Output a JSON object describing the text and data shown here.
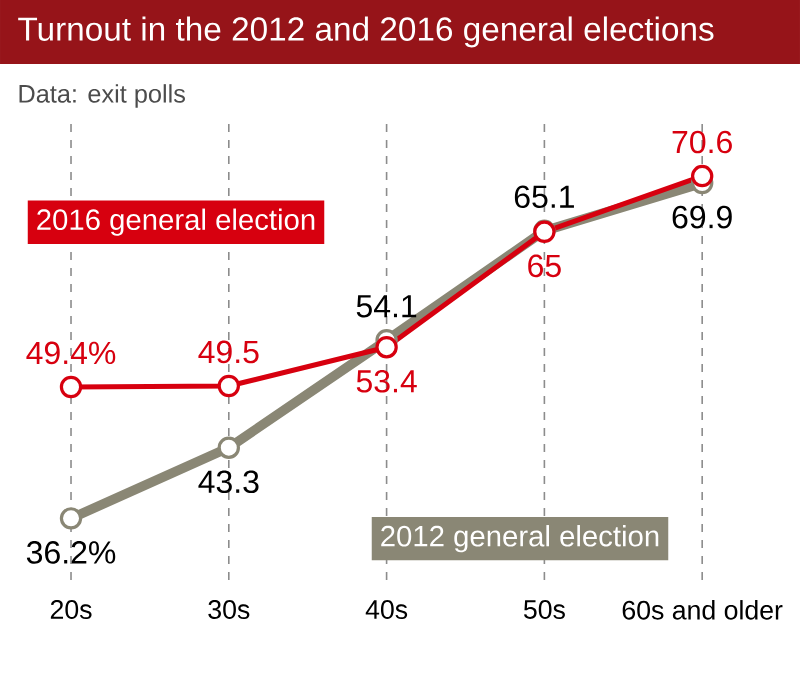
{
  "chart_data": {
    "type": "line",
    "title": "Turnout in the 2012 and 2016 general elections",
    "subtitle": "Data: exit polls",
    "categories": [
      "20s",
      "30s",
      "40s",
      "50s",
      "60s and older"
    ],
    "series": [
      {
        "name": "2012 general election",
        "color": "#8a8775",
        "values": [
          36.2,
          43.3,
          54.1,
          65.1,
          69.9
        ],
        "value_labels": [
          "36.2%",
          "43.3",
          "54.1",
          "65.1",
          "69.9"
        ]
      },
      {
        "name": "2016 general election",
        "color": "#d7000f",
        "values": [
          49.4,
          49.5,
          53.4,
          65,
          70.6
        ],
        "value_labels": [
          "49.4%",
          "49.5",
          "53.4",
          "65",
          "70.6"
        ]
      }
    ],
    "marker": "circle",
    "grid": "x"
  }
}
